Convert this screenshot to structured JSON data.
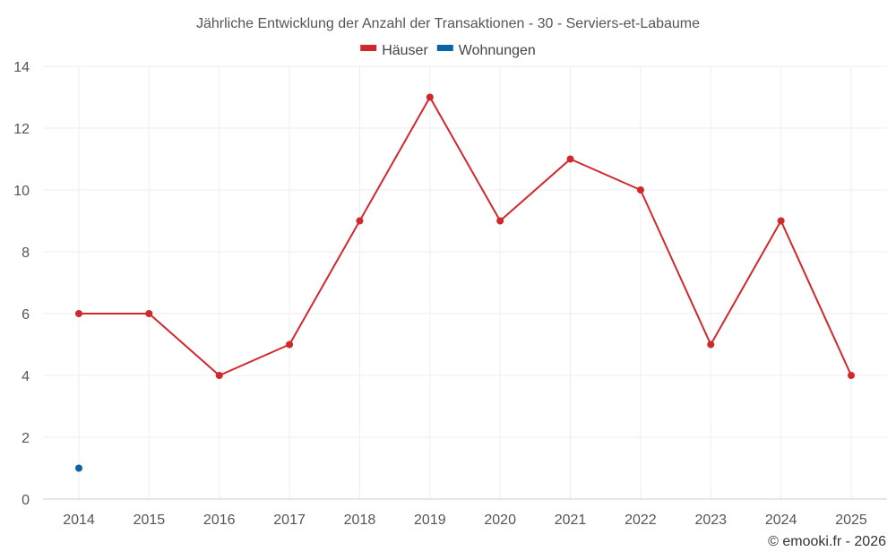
{
  "chart_data": {
    "type": "line",
    "title": "Jährliche Entwicklung der Anzahl der Transaktionen - 30 - Serviers-et-Labaume",
    "categories": [
      "2014",
      "2015",
      "2016",
      "2017",
      "2018",
      "2019",
      "2020",
      "2021",
      "2022",
      "2023",
      "2024",
      "2025"
    ],
    "series": [
      {
        "name": "Häuser",
        "color": "#d0282d",
        "values": [
          6,
          6,
          4,
          5,
          9,
          13,
          9,
          11,
          10,
          5,
          9,
          4
        ]
      },
      {
        "name": "Wohnungen",
        "color": "#0b62a4",
        "values": [
          1,
          null,
          null,
          null,
          null,
          null,
          null,
          null,
          null,
          null,
          null,
          null
        ]
      }
    ],
    "ylim": [
      0,
      14
    ],
    "yticks": [
      0,
      2,
      4,
      6,
      8,
      10,
      12,
      14
    ],
    "grid": true,
    "legend_position": "top-center"
  },
  "credit": "© emooki.fr - 2026"
}
